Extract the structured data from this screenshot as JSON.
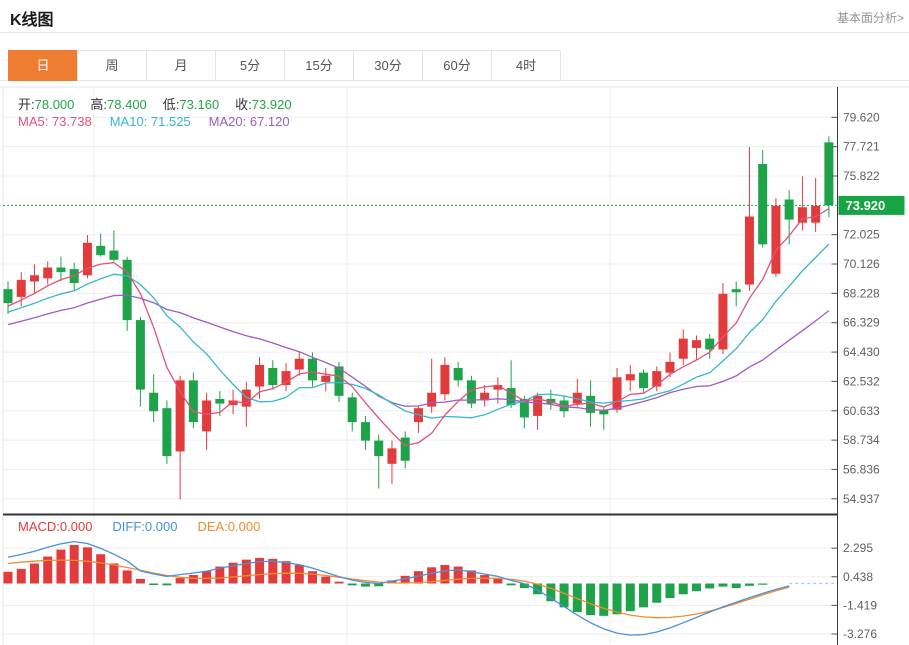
{
  "header": {
    "title": "K线图",
    "link_label": "基本面分析>"
  },
  "tabs": {
    "items": [
      "日",
      "周",
      "月",
      "5分",
      "15分",
      "30分",
      "60分",
      "4时"
    ],
    "selected_index": 0
  },
  "ohlc": {
    "items": [
      {
        "name": "open",
        "label": "开:",
        "value": "78.000"
      },
      {
        "name": "high",
        "label": "高:",
        "value": "78.400"
      },
      {
        "name": "low",
        "label": "低:",
        "value": "73.160"
      },
      {
        "name": "close",
        "label": "收:",
        "value": "73.920"
      }
    ]
  },
  "ma": {
    "items": [
      {
        "name": "ma5",
        "label": "MA5",
        "value": "73.738",
        "color": "#e0537a"
      },
      {
        "name": "ma10",
        "label": "MA10",
        "value": "71.525",
        "color": "#35b7cf"
      },
      {
        "name": "ma20",
        "label": "MA20",
        "value": "67.120",
        "color": "#a05cc0"
      }
    ]
  },
  "macd_legend": {
    "items": [
      {
        "name": "macd",
        "label": "MACD",
        "value": "0.000",
        "color": "#e23b3c"
      },
      {
        "name": "diff",
        "label": "DIFF",
        "value": "0.000",
        "color": "#4a90d9"
      },
      {
        "name": "dea",
        "label": "DEA",
        "value": "0.000",
        "color": "#ef8d2f"
      }
    ]
  },
  "colors": {
    "accent_orange": "#ee7d32",
    "up_red": "#e23b3c",
    "down_green": "#1ea24a",
    "price_label_green": "#16a445",
    "value_green": "#21a747",
    "ma5": "#e0537a",
    "ma10": "#35b7cf",
    "ma20": "#a05cc0",
    "diff_blue": "#4a90d9",
    "dea_orange": "#ef8d2f",
    "grid": "#ededed",
    "axis": "#3c3c3c",
    "tick_text": "#5f5f5f",
    "dotted_zero": "#a9cce8"
  },
  "chart_data": {
    "type": "candlestick",
    "title": "K线图",
    "legend_position": "top-left",
    "grid": true,
    "x_gridlines": [
      94,
      347,
      610
    ],
    "main": {
      "current_price": "73.920",
      "y_ticks": [
        79.62,
        77.721,
        75.822,
        72.025,
        70.126,
        68.228,
        66.329,
        64.43,
        62.532,
        60.633,
        58.734,
        56.836,
        54.937
      ],
      "y_range": [
        54.0,
        81.5
      ],
      "candles_ohlc": [
        [
          68.5,
          69.0,
          66.9,
          67.6
        ],
        [
          68.0,
          69.6,
          67.4,
          69.1
        ],
        [
          69.0,
          70.1,
          68.2,
          69.4
        ],
        [
          69.2,
          70.3,
          68.8,
          69.9
        ],
        [
          69.9,
          70.6,
          69.0,
          69.6
        ],
        [
          69.8,
          70.2,
          68.4,
          68.9
        ],
        [
          69.4,
          72.0,
          69.2,
          71.5
        ],
        [
          71.3,
          72.1,
          70.6,
          70.7
        ],
        [
          71.0,
          72.3,
          70.3,
          70.4
        ],
        [
          70.4,
          70.6,
          65.8,
          66.5
        ],
        [
          66.5,
          66.7,
          60.9,
          62.0
        ],
        [
          61.8,
          63.0,
          59.9,
          60.6
        ],
        [
          60.8,
          61.3,
          57.2,
          57.7
        ],
        [
          58.0,
          62.9,
          54.9,
          62.6
        ],
        [
          62.6,
          63.1,
          59.5,
          59.9
        ],
        [
          59.3,
          61.8,
          58.1,
          61.3
        ],
        [
          61.4,
          61.9,
          60.3,
          61.1
        ],
        [
          61.0,
          62.0,
          60.4,
          61.3
        ],
        [
          60.9,
          62.5,
          59.6,
          62.0
        ],
        [
          62.2,
          64.1,
          61.4,
          63.6
        ],
        [
          63.4,
          63.9,
          62.0,
          62.3
        ],
        [
          62.3,
          63.7,
          61.9,
          63.2
        ],
        [
          63.3,
          64.5,
          62.9,
          64.0
        ],
        [
          64.0,
          64.4,
          62.2,
          62.6
        ],
        [
          62.5,
          63.4,
          61.9,
          62.9
        ],
        [
          63.5,
          63.8,
          61.2,
          61.6
        ],
        [
          61.5,
          61.8,
          59.3,
          59.9
        ],
        [
          59.9,
          60.3,
          58.1,
          58.7
        ],
        [
          58.7,
          59.1,
          55.6,
          57.7
        ],
        [
          57.2,
          58.7,
          55.9,
          58.2
        ],
        [
          58.9,
          59.3,
          56.9,
          57.4
        ],
        [
          59.9,
          60.9,
          59.2,
          60.8
        ],
        [
          60.9,
          64.0,
          60.5,
          61.8
        ],
        [
          61.7,
          64.1,
          61.3,
          63.6
        ],
        [
          63.4,
          63.8,
          62.2,
          62.6
        ],
        [
          62.6,
          62.9,
          60.8,
          61.1
        ],
        [
          61.3,
          62.3,
          60.9,
          61.8
        ],
        [
          62.0,
          62.8,
          61.1,
          62.3
        ],
        [
          62.1,
          63.9,
          60.8,
          61.0
        ],
        [
          61.4,
          61.6,
          59.5,
          60.2
        ],
        [
          60.3,
          61.8,
          59.4,
          61.6
        ],
        [
          61.4,
          62.0,
          60.7,
          61.1
        ],
        [
          61.3,
          61.6,
          60.2,
          60.6
        ],
        [
          61.1,
          62.7,
          60.9,
          61.8
        ],
        [
          61.6,
          62.6,
          59.6,
          60.5
        ],
        [
          60.7,
          60.9,
          59.4,
          60.4
        ],
        [
          60.7,
          63.4,
          60.5,
          62.8
        ],
        [
          62.6,
          63.6,
          61.9,
          63.0
        ],
        [
          63.1,
          63.3,
          61.8,
          62.1
        ],
        [
          62.2,
          63.5,
          61.9,
          63.2
        ],
        [
          63.1,
          64.4,
          62.8,
          63.8
        ],
        [
          64.0,
          65.9,
          63.6,
          65.3
        ],
        [
          64.7,
          65.5,
          63.9,
          65.2
        ],
        [
          65.3,
          65.6,
          64.0,
          64.6
        ],
        [
          64.6,
          68.9,
          64.3,
          68.2
        ],
        [
          68.5,
          69.0,
          67.4,
          68.3
        ],
        [
          68.8,
          77.7,
          68.4,
          73.2
        ],
        [
          76.6,
          77.5,
          71.2,
          71.4
        ],
        [
          69.5,
          74.4,
          69.3,
          73.9
        ],
        [
          74.3,
          74.9,
          71.4,
          73.0
        ],
        [
          72.8,
          75.8,
          72.3,
          73.8
        ],
        [
          72.8,
          75.7,
          72.2,
          73.9
        ],
        [
          78.0,
          78.4,
          73.16,
          73.92
        ]
      ]
    },
    "macd": {
      "y_ticks": [
        2.295,
        0.438,
        -1.419,
        -3.276
      ],
      "hist": [
        0.76,
        0.95,
        1.3,
        1.75,
        2.2,
        2.5,
        2.35,
        1.9,
        1.3,
        0.85,
        0.3,
        -0.1,
        -0.12,
        0.35,
        0.55,
        0.8,
        1.1,
        1.35,
        1.55,
        1.66,
        1.6,
        1.45,
        1.2,
        0.8,
        0.45,
        0.12,
        -0.12,
        -0.2,
        -0.18,
        0.2,
        0.5,
        0.8,
        1.05,
        1.2,
        1.1,
        0.85,
        0.55,
        0.3,
        -0.12,
        -0.3,
        -0.7,
        -1.15,
        -1.55,
        -1.85,
        -2.05,
        -2.1,
        -2.0,
        -1.8,
        -1.55,
        -1.25,
        -0.95,
        -0.7,
        -0.5,
        -0.32,
        -0.2,
        -0.3,
        -0.15,
        -0.08,
        0,
        0,
        0,
        0,
        0
      ],
      "diff": [
        1.7,
        1.88,
        2.1,
        2.35,
        2.58,
        2.72,
        2.6,
        2.28,
        1.9,
        1.47,
        0.82,
        0.62,
        0.46,
        0.58,
        0.68,
        0.8,
        1.0,
        1.15,
        1.3,
        1.42,
        1.44,
        1.36,
        1.22,
        1.0,
        0.72,
        0.45,
        0.22,
        0.07,
        0.0,
        0.15,
        0.3,
        0.48,
        0.66,
        0.82,
        0.88,
        0.76,
        0.62,
        0.46,
        0.2,
        -0.02,
        -0.42,
        -0.95,
        -1.5,
        -2.05,
        -2.55,
        -2.95,
        -3.22,
        -3.35,
        -3.32,
        -3.15,
        -2.88,
        -2.55,
        -2.2,
        -1.85,
        -1.52,
        -1.22,
        -0.92,
        -0.64,
        -0.38,
        -0.16,
        -0.06,
        -0.02,
        0.0
      ],
      "dea": [
        1.3,
        1.38,
        1.45,
        1.5,
        1.52,
        1.5,
        1.44,
        1.34,
        1.2,
        1.04,
        0.86,
        0.68,
        0.52,
        0.4,
        0.34,
        0.33,
        0.36,
        0.42,
        0.5,
        0.58,
        0.64,
        0.67,
        0.66,
        0.61,
        0.52,
        0.41,
        0.29,
        0.18,
        0.09,
        0.04,
        0.03,
        0.06,
        0.12,
        0.2,
        0.28,
        0.33,
        0.35,
        0.33,
        0.27,
        0.15,
        -0.05,
        -0.32,
        -0.64,
        -0.98,
        -1.31,
        -1.61,
        -1.86,
        -2.05,
        -2.17,
        -2.22,
        -2.2,
        -2.12,
        -1.98,
        -1.79,
        -1.56,
        -1.3,
        -1.02,
        -0.74,
        -0.47,
        -0.24,
        -0.1,
        -0.04,
        0.0
      ]
    }
  }
}
